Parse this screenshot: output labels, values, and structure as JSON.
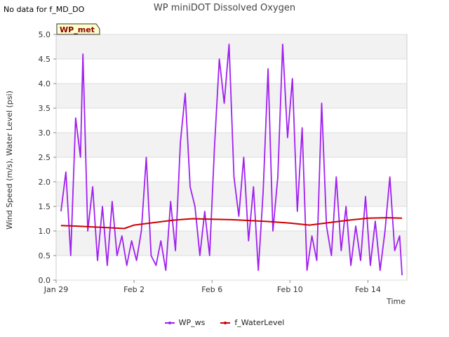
{
  "no_data_message": "No data for f_MD_DO",
  "chart_data": {
    "type": "line",
    "title": "WP miniDOT Dissolved Oxygen",
    "xlabel": "Time",
    "ylabel": "Wind Speed (m/s), Water Level (psi)",
    "xlim": [
      "2022-01-29",
      "2022-02-16"
    ],
    "ylim": [
      0.0,
      5.0
    ],
    "x_ticks": [
      "Jan 29",
      "Feb 2",
      "Feb 6",
      "Feb 10",
      "Feb 14"
    ],
    "x_tick_dates": [
      "2022-01-29",
      "2022-02-02",
      "2022-02-06",
      "2022-02-10",
      "2022-02-14"
    ],
    "y_ticks": [
      "0.0",
      "0.5",
      "1.0",
      "1.5",
      "2.0",
      "2.5",
      "3.0",
      "3.5",
      "4.0",
      "4.5",
      "5.0"
    ],
    "grid": true,
    "legend_position": "bottom",
    "badge": "WP_met",
    "series": [
      {
        "name": "WP_ws",
        "color": "#a020f0",
        "points": [
          [
            "2022-01-29T06:00",
            1.4
          ],
          [
            "2022-01-29T12:00",
            2.2
          ],
          [
            "2022-01-29T18:00",
            0.5
          ],
          [
            "2022-01-30T00:00",
            3.3
          ],
          [
            "2022-01-30T06:00",
            2.5
          ],
          [
            "2022-01-30T09:00",
            4.6
          ],
          [
            "2022-01-30T15:00",
            1.0
          ],
          [
            "2022-01-30T21:00",
            1.9
          ],
          [
            "2022-01-31T03:00",
            0.4
          ],
          [
            "2022-01-31T09:00",
            1.5
          ],
          [
            "2022-01-31T15:00",
            0.3
          ],
          [
            "2022-01-31T21:00",
            1.6
          ],
          [
            "2022-02-01T03:00",
            0.5
          ],
          [
            "2022-02-01T09:00",
            0.9
          ],
          [
            "2022-02-01T15:00",
            0.3
          ],
          [
            "2022-02-01T21:00",
            0.8
          ],
          [
            "2022-02-02T03:00",
            0.4
          ],
          [
            "2022-02-02T09:00",
            1.0
          ],
          [
            "2022-02-02T15:00",
            2.5
          ],
          [
            "2022-02-02T21:00",
            0.5
          ],
          [
            "2022-02-03T03:00",
            0.3
          ],
          [
            "2022-02-03T09:00",
            0.8
          ],
          [
            "2022-02-03T15:00",
            0.2
          ],
          [
            "2022-02-03T21:00",
            1.6
          ],
          [
            "2022-02-04T03:00",
            0.6
          ],
          [
            "2022-02-04T09:00",
            2.8
          ],
          [
            "2022-02-04T15:00",
            3.8
          ],
          [
            "2022-02-04T21:00",
            1.9
          ],
          [
            "2022-02-05T03:00",
            1.5
          ],
          [
            "2022-02-05T09:00",
            0.5
          ],
          [
            "2022-02-05T15:00",
            1.4
          ],
          [
            "2022-02-05T21:00",
            0.5
          ],
          [
            "2022-02-06T03:00",
            2.7
          ],
          [
            "2022-02-06T09:00",
            4.5
          ],
          [
            "2022-02-06T15:00",
            3.6
          ],
          [
            "2022-02-06T21:00",
            4.8
          ],
          [
            "2022-02-07T03:00",
            2.1
          ],
          [
            "2022-02-07T09:00",
            1.3
          ],
          [
            "2022-02-07T15:00",
            2.5
          ],
          [
            "2022-02-07T21:00",
            0.8
          ],
          [
            "2022-02-08T03:00",
            1.9
          ],
          [
            "2022-02-08T09:00",
            0.2
          ],
          [
            "2022-02-08T15:00",
            1.8
          ],
          [
            "2022-02-08T21:00",
            4.3
          ],
          [
            "2022-02-09T03:00",
            1.0
          ],
          [
            "2022-02-09T09:00",
            2.1
          ],
          [
            "2022-02-09T15:00",
            4.8
          ],
          [
            "2022-02-09T21:00",
            2.9
          ],
          [
            "2022-02-10T03:00",
            4.1
          ],
          [
            "2022-02-10T09:00",
            1.4
          ],
          [
            "2022-02-10T15:00",
            3.1
          ],
          [
            "2022-02-10T21:00",
            0.2
          ],
          [
            "2022-02-11T03:00",
            0.9
          ],
          [
            "2022-02-11T09:00",
            0.4
          ],
          [
            "2022-02-11T15:00",
            3.6
          ],
          [
            "2022-02-11T21:00",
            1.1
          ],
          [
            "2022-02-12T03:00",
            0.5
          ],
          [
            "2022-02-12T09:00",
            2.1
          ],
          [
            "2022-02-12T15:00",
            0.6
          ],
          [
            "2022-02-12T21:00",
            1.5
          ],
          [
            "2022-02-13T03:00",
            0.3
          ],
          [
            "2022-02-13T09:00",
            1.1
          ],
          [
            "2022-02-13T15:00",
            0.4
          ],
          [
            "2022-02-13T21:00",
            1.7
          ],
          [
            "2022-02-14T03:00",
            0.3
          ],
          [
            "2022-02-14T09:00",
            1.2
          ],
          [
            "2022-02-14T15:00",
            0.2
          ],
          [
            "2022-02-14T21:00",
            1.0
          ],
          [
            "2022-02-15T03:00",
            2.1
          ],
          [
            "2022-02-15T09:00",
            0.6
          ],
          [
            "2022-02-15T15:00",
            0.9
          ],
          [
            "2022-02-15T18:00",
            0.1
          ]
        ]
      },
      {
        "name": "f_WaterLevel",
        "color": "#cc0000",
        "points": [
          [
            "2022-01-29T06:00",
            1.11
          ],
          [
            "2022-01-30T00:00",
            1.1
          ],
          [
            "2022-01-31T00:00",
            1.08
          ],
          [
            "2022-02-01T00:00",
            1.06
          ],
          [
            "2022-02-01T12:00",
            1.05
          ],
          [
            "2022-02-02T00:00",
            1.12
          ],
          [
            "2022-02-03T00:00",
            1.17
          ],
          [
            "2022-02-04T00:00",
            1.22
          ],
          [
            "2022-02-05T00:00",
            1.25
          ],
          [
            "2022-02-06T00:00",
            1.24
          ],
          [
            "2022-02-07T00:00",
            1.23
          ],
          [
            "2022-02-08T00:00",
            1.21
          ],
          [
            "2022-02-09T00:00",
            1.19
          ],
          [
            "2022-02-10T00:00",
            1.16
          ],
          [
            "2022-02-11T00:00",
            1.12
          ],
          [
            "2022-02-12T00:00",
            1.17
          ],
          [
            "2022-02-13T00:00",
            1.22
          ],
          [
            "2022-02-14T00:00",
            1.26
          ],
          [
            "2022-02-15T00:00",
            1.27
          ],
          [
            "2022-02-15T18:00",
            1.26
          ]
        ]
      }
    ]
  }
}
